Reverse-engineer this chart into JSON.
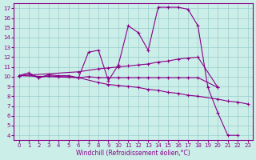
{
  "bg_color": "#cceee8",
  "line_color": "#880088",
  "grid_color": "#99cccc",
  "xlabel": "Windchill (Refroidissement éolien,°C)",
  "xlim": [
    -0.5,
    23.5
  ],
  "ylim": [
    3.5,
    17.5
  ],
  "xticks": [
    0,
    1,
    2,
    3,
    4,
    5,
    6,
    7,
    8,
    9,
    10,
    11,
    12,
    13,
    14,
    15,
    16,
    17,
    18,
    19,
    20,
    21,
    22,
    23
  ],
  "yticks": [
    4,
    5,
    6,
    7,
    8,
    9,
    10,
    11,
    12,
    13,
    14,
    15,
    16,
    17
  ],
  "line1_x": [
    0,
    1,
    2,
    3,
    4,
    5,
    6,
    7,
    8,
    9,
    10,
    11,
    12,
    13,
    14,
    15,
    16,
    17,
    18,
    19,
    20,
    21,
    22
  ],
  "line1_y": [
    10.1,
    10.4,
    9.9,
    10.2,
    10.1,
    10.1,
    9.9,
    12.5,
    12.7,
    9.6,
    11.2,
    15.2,
    14.5,
    12.7,
    17.1,
    17.1,
    17.1,
    16.9,
    15.2,
    8.9,
    6.3,
    4.0,
    4.0
  ],
  "line2_x": [
    0,
    6,
    8,
    9,
    10,
    11,
    12,
    13,
    14,
    15,
    16,
    17,
    18,
    20,
    21,
    22,
    23
  ],
  "line2_y": [
    10.1,
    9.9,
    9.4,
    9.2,
    9.1,
    9.0,
    8.9,
    8.7,
    8.6,
    8.4,
    8.3,
    8.1,
    8.0,
    7.7,
    7.5,
    7.4,
    7.2
  ],
  "line3_x": [
    0,
    6,
    8,
    9,
    10,
    11,
    12,
    13,
    14,
    15,
    16,
    17,
    18,
    20
  ],
  "line3_y": [
    10.1,
    10.5,
    10.8,
    10.9,
    11.0,
    11.1,
    11.2,
    11.3,
    11.5,
    11.6,
    11.8,
    11.9,
    12.0,
    8.9
  ],
  "line4_x": [
    0,
    1,
    2,
    3,
    4,
    5,
    6,
    7,
    8,
    9,
    10,
    11,
    12,
    13,
    14,
    15,
    16,
    17,
    18,
    20
  ],
  "line4_y": [
    10.1,
    10.2,
    9.9,
    10.1,
    10.0,
    10.0,
    9.9,
    10.0,
    9.9,
    9.9,
    9.9,
    9.9,
    9.9,
    9.9,
    9.9,
    9.9,
    9.9,
    9.9,
    9.9,
    8.9
  ]
}
